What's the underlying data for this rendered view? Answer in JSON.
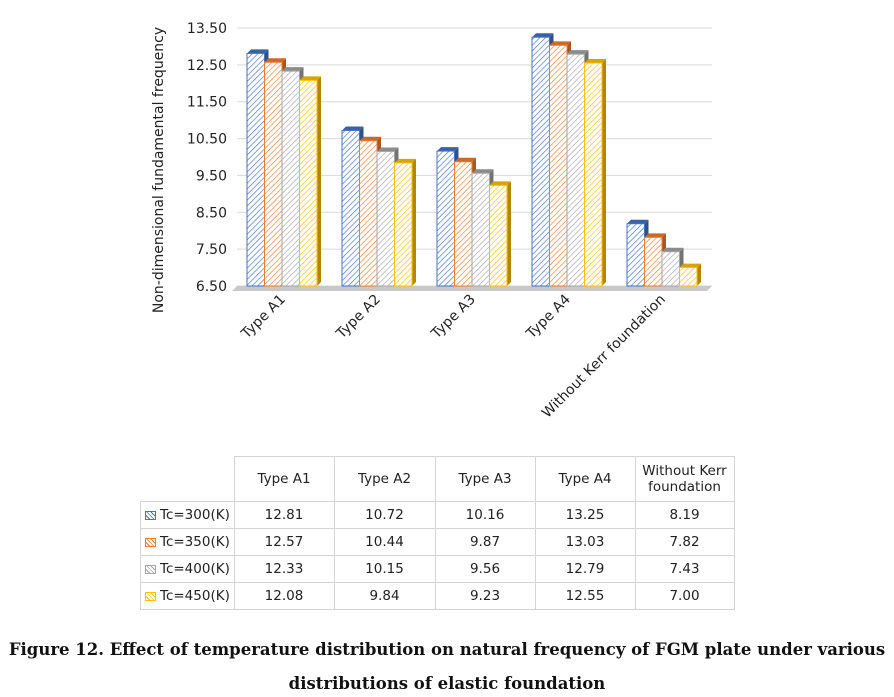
{
  "chart_data": {
    "type": "bar",
    "ylabel": "Non-dimensional fundamental frequency",
    "xlabel": "",
    "ylim": [
      6.5,
      13.5
    ],
    "yticks": [
      "6.50",
      "7.50",
      "8.50",
      "9.50",
      "10.50",
      "11.50",
      "12.50",
      "13.50"
    ],
    "grid": true,
    "categories": [
      "Type A1",
      "Type A2",
      "Type A3",
      "Type A4",
      "Without Kerr foundation"
    ],
    "series": [
      {
        "name": "Tc=300(K)",
        "color": "#4472C4",
        "values": [
          12.81,
          10.72,
          10.16,
          13.25,
          8.19
        ],
        "labels": [
          "12.81",
          "10.72",
          "10.16",
          "13.25",
          "8.19"
        ]
      },
      {
        "name": "Tc=350(K)",
        "color": "#ED7D31",
        "values": [
          12.57,
          10.44,
          9.87,
          13.03,
          7.82
        ],
        "labels": [
          "12.57",
          "10.44",
          "9.87",
          "13.03",
          "7.82"
        ]
      },
      {
        "name": "Tc=400(K)",
        "color": "#A5A5A5",
        "values": [
          12.33,
          10.15,
          9.56,
          12.79,
          7.43
        ],
        "labels": [
          "12.33",
          "10.15",
          "9.56",
          "12.79",
          "7.43"
        ]
      },
      {
        "name": "Tc=450(K)",
        "color": "#FFC000",
        "values": [
          12.08,
          9.84,
          9.23,
          12.55,
          7.0
        ],
        "labels": [
          "12.08",
          "9.84",
          "9.23",
          "12.55",
          "7.00"
        ]
      }
    ],
    "table_headers": [
      "Type A1",
      "Type A2",
      "Type A3",
      "Type A4",
      "Without Kerr foundation"
    ],
    "data_table": true
  },
  "caption": {
    "line1": "Figure 12. Effect of temperature distribution on natural frequency of FGM plate under various",
    "line2": "distributions of elastic foundation"
  }
}
